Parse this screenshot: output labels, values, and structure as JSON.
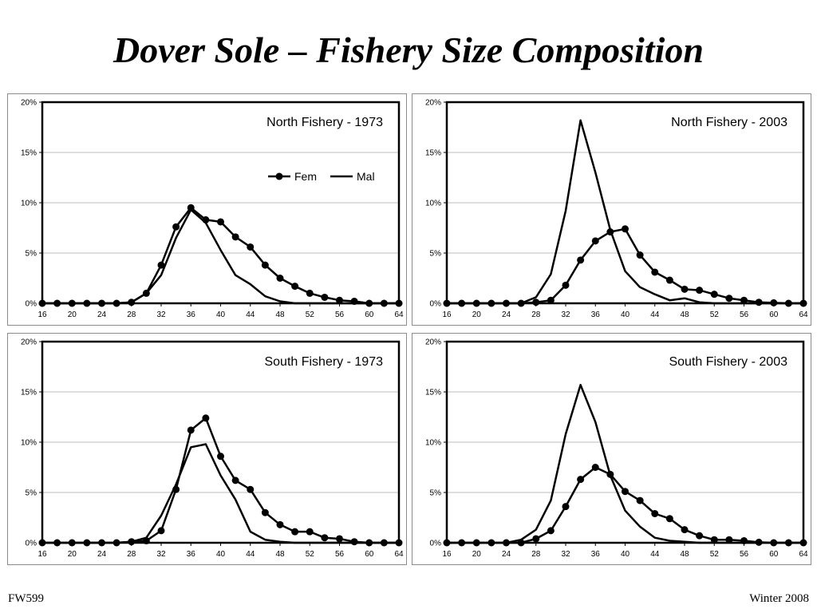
{
  "slide": {
    "title": "Dover Sole – Fishery Size Composition",
    "footer_left": "FW599",
    "footer_right": "Winter 2008"
  },
  "chart_data": [
    {
      "type": "line",
      "title": "North Fishery - 1973",
      "x": [
        16,
        18,
        20,
        22,
        24,
        26,
        28,
        30,
        32,
        34,
        36,
        38,
        40,
        42,
        44,
        46,
        48,
        50,
        52,
        54,
        56,
        58,
        60,
        62,
        64
      ],
      "xticks": [
        "16",
        "20",
        "24",
        "28",
        "32",
        "36",
        "40",
        "44",
        "48",
        "52",
        "56",
        "60",
        "64"
      ],
      "yticks": [
        "0%",
        "5%",
        "10%",
        "15%",
        "20%"
      ],
      "ylim": [
        0,
        20
      ],
      "grid": true,
      "legend": "upper-right",
      "series": [
        {
          "name": "Fem",
          "marker": "circle",
          "values": [
            0,
            0,
            0,
            0,
            0,
            0,
            0.1,
            1.0,
            3.8,
            7.6,
            9.5,
            8.3,
            8.1,
            6.6,
            5.6,
            3.8,
            2.5,
            1.7,
            1.0,
            0.6,
            0.3,
            0.2,
            0,
            0,
            0
          ]
        },
        {
          "name": "Mal",
          "marker": "none",
          "values": [
            0,
            0,
            0,
            0,
            0,
            0,
            0.1,
            1.0,
            2.8,
            6.5,
            9.3,
            8.0,
            5.3,
            2.8,
            1.9,
            0.7,
            0.2,
            0,
            0,
            0,
            0,
            0,
            0,
            0,
            0
          ]
        }
      ]
    },
    {
      "type": "line",
      "title": "North Fishery - 2003",
      "x": [
        16,
        18,
        20,
        22,
        24,
        26,
        28,
        30,
        32,
        34,
        36,
        38,
        40,
        42,
        44,
        46,
        48,
        50,
        52,
        54,
        56,
        58,
        60,
        62,
        64
      ],
      "xticks": [
        "16",
        "20",
        "24",
        "28",
        "32",
        "36",
        "40",
        "44",
        "48",
        "52",
        "56",
        "60",
        "64"
      ],
      "yticks": [
        "0%",
        "5%",
        "10%",
        "15%",
        "20%"
      ],
      "ylim": [
        0,
        20
      ],
      "grid": true,
      "series": [
        {
          "name": "Fem",
          "marker": "circle",
          "values": [
            0,
            0,
            0,
            0,
            0,
            0,
            0.1,
            0.3,
            1.8,
            4.3,
            6.2,
            7.1,
            7.4,
            4.8,
            3.1,
            2.3,
            1.4,
            1.3,
            0.9,
            0.5,
            0.3,
            0.1,
            0.05,
            0,
            0
          ]
        },
        {
          "name": "Mal",
          "marker": "none",
          "values": [
            0,
            0,
            0,
            0,
            0,
            0,
            0.6,
            2.9,
            9.2,
            18.2,
            13.0,
            7.3,
            3.2,
            1.6,
            0.9,
            0.3,
            0.5,
            0.1,
            0,
            0,
            0,
            0,
            0,
            0,
            0
          ]
        }
      ]
    },
    {
      "type": "line",
      "title": "South Fishery - 1973",
      "x": [
        16,
        18,
        20,
        22,
        24,
        26,
        28,
        30,
        32,
        34,
        36,
        38,
        40,
        42,
        44,
        46,
        48,
        50,
        52,
        54,
        56,
        58,
        60,
        62,
        64
      ],
      "xticks": [
        "16",
        "20",
        "24",
        "28",
        "32",
        "36",
        "40",
        "44",
        "48",
        "52",
        "56",
        "60",
        "64"
      ],
      "yticks": [
        "0%",
        "5%",
        "10%",
        "15%",
        "20%"
      ],
      "ylim": [
        0,
        20
      ],
      "grid": true,
      "series": [
        {
          "name": "Fem",
          "marker": "circle",
          "values": [
            0,
            0,
            0,
            0,
            0,
            0,
            0.1,
            0.2,
            1.2,
            5.3,
            11.2,
            12.4,
            8.6,
            6.2,
            5.3,
            3.0,
            1.8,
            1.1,
            1.1,
            0.5,
            0.4,
            0.1,
            0,
            0,
            0
          ]
        },
        {
          "name": "Mal",
          "marker": "none",
          "values": [
            0,
            0,
            0,
            0,
            0,
            0,
            0.1,
            0.5,
            2.7,
            5.8,
            9.5,
            9.8,
            6.7,
            4.3,
            1.1,
            0.3,
            0.1,
            0,
            0,
            0,
            0,
            0,
            0,
            0,
            0
          ]
        }
      ]
    },
    {
      "type": "line",
      "title": "South Fishery - 2003",
      "x": [
        16,
        18,
        20,
        22,
        24,
        26,
        28,
        30,
        32,
        34,
        36,
        38,
        40,
        42,
        44,
        46,
        48,
        50,
        52,
        54,
        56,
        58,
        60,
        62,
        64
      ],
      "xticks": [
        "16",
        "20",
        "24",
        "28",
        "32",
        "36",
        "40",
        "44",
        "48",
        "52",
        "56",
        "60",
        "64"
      ],
      "yticks": [
        "0%",
        "5%",
        "10%",
        "15%",
        "20%"
      ],
      "ylim": [
        0,
        20
      ],
      "grid": true,
      "series": [
        {
          "name": "Fem",
          "marker": "circle",
          "values": [
            0,
            0,
            0,
            0,
            0,
            0,
            0.4,
            1.2,
            3.6,
            6.3,
            7.5,
            6.8,
            5.1,
            4.2,
            2.9,
            2.4,
            1.3,
            0.7,
            0.3,
            0.3,
            0.2,
            0.05,
            0,
            0,
            0
          ]
        },
        {
          "name": "Mal",
          "marker": "none",
          "values": [
            0,
            0,
            0,
            0,
            0,
            0.3,
            1.3,
            4.2,
            10.8,
            15.7,
            12.0,
            6.7,
            3.2,
            1.6,
            0.5,
            0.2,
            0.1,
            0,
            0,
            0,
            0,
            0,
            0,
            0,
            0
          ]
        }
      ]
    }
  ]
}
